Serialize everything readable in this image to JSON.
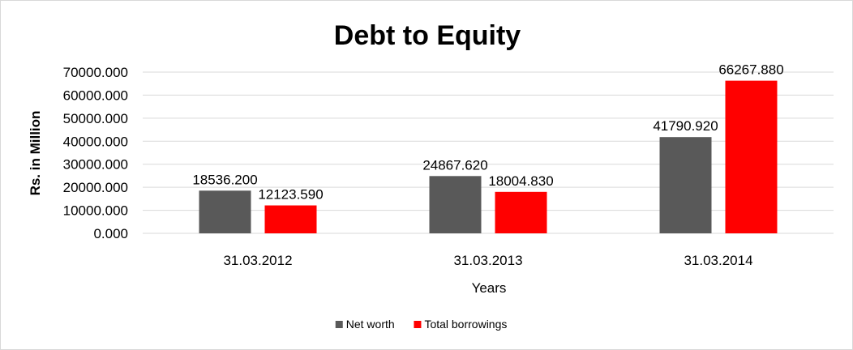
{
  "chart_data": {
    "type": "bar",
    "title": "Debt to Equity",
    "xlabel": "Years",
    "ylabel": "Rs. in Million",
    "categories": [
      "31.03.2012",
      "31.03.2013",
      "31.03.2014"
    ],
    "series": [
      {
        "name": "Net worth",
        "color": "#595959",
        "values": [
          18536.2,
          24867.62,
          41790.92
        ],
        "labels": [
          "18536.200",
          "24867.620",
          "41790.920"
        ]
      },
      {
        "name": "Total borrowings",
        "color": "#ff0000",
        "values": [
          12123.59,
          18004.83,
          66267.88
        ],
        "labels": [
          "12123.590",
          "18004.830",
          "66267.880"
        ]
      }
    ],
    "ylim": [
      0,
      70000
    ],
    "yticks": [
      0,
      10000,
      20000,
      30000,
      40000,
      50000,
      60000,
      70000
    ],
    "ytick_labels": [
      "0.000",
      "10000.000",
      "20000.000",
      "30000.000",
      "40000.000",
      "50000.000",
      "60000.000",
      "70000.000"
    ],
    "grid": true,
    "legend_position": "bottom"
  }
}
